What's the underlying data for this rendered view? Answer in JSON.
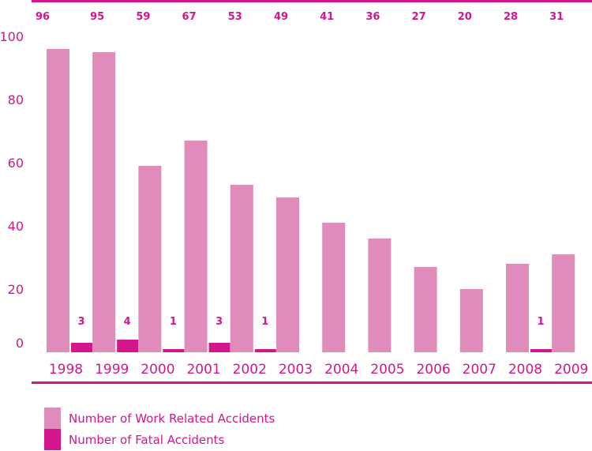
{
  "chart_data": {
    "type": "bar",
    "categories": [
      "1998",
      "1999",
      "2000",
      "2001",
      "2002",
      "2003",
      "2004",
      "2005",
      "2006",
      "2007",
      "2008",
      "2009"
    ],
    "series": [
      {
        "name": "Number of Work Related Accidents",
        "values": [
          96,
          95,
          59,
          67,
          53,
          49,
          41,
          36,
          27,
          20,
          28,
          31
        ],
        "color": "#e08cbb"
      },
      {
        "name": "Number of Fatal Accidents",
        "values": [
          3,
          4,
          1,
          3,
          1,
          0,
          0,
          0,
          0,
          0,
          1,
          0
        ],
        "color": "#d4168d"
      }
    ],
    "top_labels": [
      "96",
      "95",
      "59",
      "67",
      "53",
      "49",
      "41",
      "36",
      "27",
      "20",
      "28",
      "31"
    ],
    "fatal_labels": [
      "3",
      "4",
      "1",
      "3",
      "1",
      "",
      "",
      "",
      "",
      "",
      "1",
      ""
    ],
    "yticks": [
      0,
      20,
      40,
      60,
      80,
      100
    ],
    "ytick_labels": [
      "0",
      "20",
      "40",
      "60",
      "80",
      "100"
    ],
    "ylim": [
      0,
      100
    ],
    "title": "",
    "xlabel": "",
    "ylabel": "",
    "grid": false,
    "legend_position": "bottom-left",
    "line_color": "#d4168d"
  }
}
